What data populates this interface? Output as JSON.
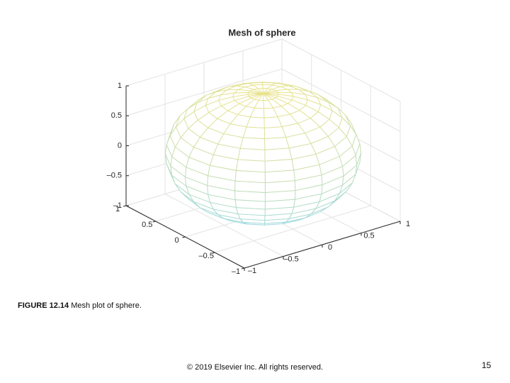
{
  "chart_data": {
    "type": "mesh",
    "title": "Mesh of sphere",
    "xlim": [
      -1,
      1
    ],
    "ylim": [
      -1,
      1
    ],
    "zlim": [
      -1,
      1
    ],
    "xticks": [
      {
        "value": -1,
        "label": "–1"
      },
      {
        "value": -0.5,
        "label": "–0.5"
      },
      0,
      0.5,
      1
    ],
    "yticks": [
      {
        "value": -1,
        "label": "–1"
      },
      {
        "value": -0.5,
        "label": "–0.5"
      },
      0,
      0.5,
      1
    ],
    "zticks": [
      {
        "value": -1,
        "label": "–1"
      },
      {
        "value": -0.5,
        "label": "–0.5"
      },
      0,
      0.5,
      1
    ],
    "grid": true,
    "colormap": "parula"
  },
  "caption": {
    "label": "FIGURE 12.14",
    "text": "Mesh plot of sphere."
  },
  "footer": "© 2019 Elsevier Inc. All rights reserved.",
  "page_number": 15
}
